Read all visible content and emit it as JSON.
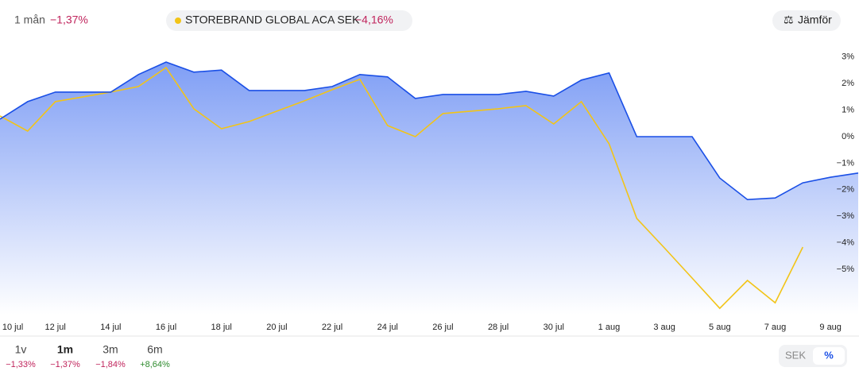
{
  "header": {
    "period_label": "1 mån",
    "period_change": "−1,37%",
    "compare_button": "Jämför"
  },
  "chart_data": {
    "type": "line",
    "categories": [
      "10 jul",
      null,
      "12 jul",
      null,
      "14 jul",
      null,
      "16 jul",
      null,
      "18 jul",
      null,
      "20 jul",
      null,
      "22 jul",
      null,
      "24 jul",
      null,
      "26 jul",
      null,
      "28 jul",
      null,
      "30 jul",
      null,
      "1 aug",
      null,
      "3 aug",
      null,
      "5 aug",
      null,
      "7 aug",
      null,
      "9 aug",
      null
    ],
    "series": [
      {
        "color": "#1a4fe6",
        "area": true,
        "values": [
          0.66,
          1.32,
          1.68,
          1.68,
          1.68,
          2.34,
          2.81,
          2.43,
          2.51,
          1.74,
          1.74,
          1.74,
          1.89,
          2.34,
          2.25,
          1.44,
          1.59,
          1.59,
          1.59,
          1.71,
          1.53,
          2.13,
          2.4,
          0,
          0,
          0,
          -1.56,
          -2.37,
          -2.31,
          -1.74,
          -1.53,
          -1.37
        ]
      },
      {
        "name": "STOREBRAND GLOBAL ACA SEK",
        "legend_value": "−4,16%",
        "color": "#f2c417",
        "values": [
          0.78,
          0.21,
          1.32,
          1.5,
          1.68,
          1.89,
          2.6,
          1.05,
          0.3,
          0.57,
          0.96,
          1.35,
          1.77,
          2.16,
          0.42,
          0,
          0.87,
          0.96,
          1.05,
          1.17,
          0.48,
          1.32,
          -0.27,
          -3.08,
          -4.19,
          -5.33,
          -6.47,
          -5.42,
          -6.26,
          -4.16,
          null,
          null
        ]
      }
    ],
    "ylim": [
      -6.7,
      3.7
    ],
    "yticks": [
      {
        "value": -5,
        "label": "−5%"
      },
      {
        "value": -4,
        "label": "−4%"
      },
      {
        "value": -3,
        "label": "−3%"
      },
      {
        "value": -2,
        "label": "−2%"
      },
      {
        "value": -1,
        "label": "−1%"
      },
      {
        "value": 0,
        "label": "0%"
      },
      {
        "value": 1,
        "label": "1%"
      },
      {
        "value": 2,
        "label": "2%"
      },
      {
        "value": 3,
        "label": "3%"
      }
    ],
    "grid": false
  },
  "periods": [
    {
      "label": "1v",
      "change": "−1,33%"
    },
    {
      "label": "1m",
      "change": "−1,37%",
      "selected": true
    },
    {
      "label": "3m",
      "change": "−1,84%"
    },
    {
      "label": "6m",
      "change": "+8,64%"
    }
  ],
  "unit_toggle": [
    "SEK",
    "%"
  ]
}
